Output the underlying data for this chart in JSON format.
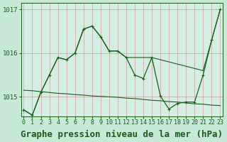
{
  "title": "Graphe pression niveau de la mer (hPa)",
  "background_color": "#c8e8d8",
  "plot_bg_color": "#d4eee4",
  "line_color": "#1a5c1a",
  "grid_color_v": "#c8a0a0",
  "grid_color_h": "#c8a0a0",
  "yticks": [
    1015,
    1016,
    1017
  ],
  "ylim": [
    1014.55,
    1017.15
  ],
  "xlim": [
    -0.3,
    23.3
  ],
  "x_labels": [
    "0",
    "1",
    "2",
    "3",
    "4",
    "5",
    "6",
    "7",
    "8",
    "9",
    "10",
    "11",
    "12",
    "13",
    "14",
    "15",
    "16",
    "17",
    "18",
    "19",
    "20",
    "21",
    "22",
    "23"
  ],
  "series_main": [
    1014.7,
    1014.58,
    1015.1,
    1015.5,
    1015.9,
    1015.85,
    1016.0,
    1016.55,
    1016.62,
    1016.38,
    1016.05,
    1016.05,
    1015.9,
    1015.5,
    1015.42,
    1015.9,
    1015.02,
    1014.72,
    1014.85,
    1014.88,
    1014.88,
    1015.5,
    1016.3,
    1017.0
  ],
  "series_smooth": [
    1014.7,
    1014.58,
    1015.1,
    1015.5,
    1015.9,
    1015.85,
    1016.0,
    1016.55,
    1016.62,
    1016.38,
    1016.05,
    1016.05,
    1015.9,
    1015.9,
    1015.9,
    1015.9,
    1015.85,
    1015.8,
    1015.75,
    1015.7,
    1015.65,
    1015.6,
    1016.3,
    1017.0
  ],
  "series_flat": [
    1015.15,
    1015.14,
    1015.12,
    1015.1,
    1015.08,
    1015.07,
    1015.05,
    1015.04,
    1015.02,
    1015.01,
    1015.0,
    1014.99,
    1014.97,
    1014.96,
    1014.94,
    1014.92,
    1014.91,
    1014.89,
    1014.88,
    1014.86,
    1014.84,
    1014.83,
    1014.81,
    1014.8
  ],
  "title_fontsize": 9,
  "tick_fontsize": 6.5
}
